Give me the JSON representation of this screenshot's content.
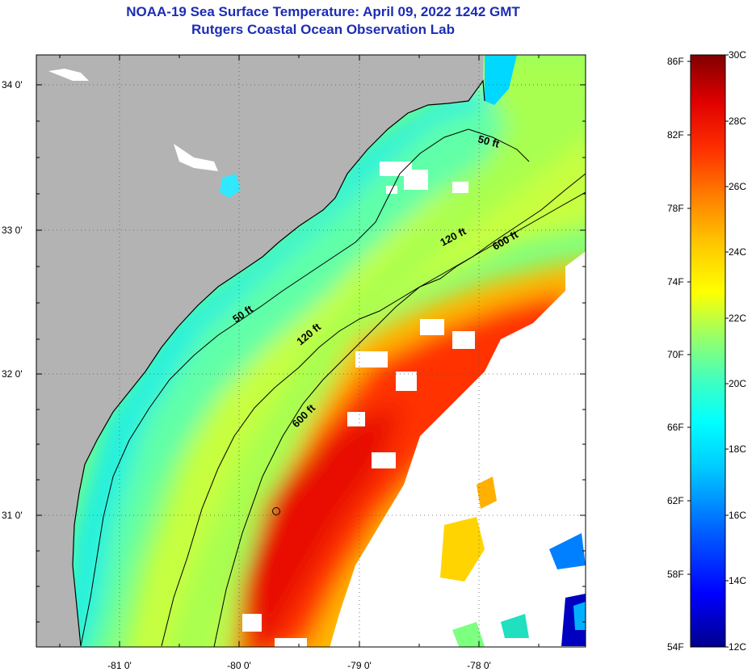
{
  "title": {
    "line1": "NOAA-19 Sea Surface Temperature:  April 09, 2022 1242 GMT",
    "line2": "Rutgers Coastal Ocean Observation Lab"
  },
  "map": {
    "lat_labels": [
      "34 0'",
      "33 0'",
      "32 0'",
      "31 0'"
    ],
    "lon_labels": [
      "-81 0'",
      "-80 0'",
      "-79 0'",
      "-78 0'"
    ],
    "contours": [
      "50 ft",
      "120 ft",
      "600 ft",
      "50 ft",
      "120 ft",
      "600 ft"
    ],
    "colors": {
      "land": "#b3b3b3",
      "no_data": "#ffffff",
      "grid": "#000000"
    }
  },
  "colorbar": {
    "fahrenheit_labels": [
      "86F",
      "82F",
      "78F",
      "74F",
      "70F",
      "66F",
      "62F",
      "58F",
      "54F"
    ],
    "celsius_labels": [
      "30C",
      "28C",
      "26C",
      "24C",
      "22C",
      "20C",
      "18C",
      "16C",
      "14C",
      "12C"
    ],
    "gradient_colors": [
      "#00008c",
      "#0000ff",
      "#0064ff",
      "#00c8ff",
      "#00ffff",
      "#40ffc0",
      "#a0ff60",
      "#ffff00",
      "#ffc800",
      "#ff8000",
      "#ff3000",
      "#e00000",
      "#800000"
    ]
  }
}
